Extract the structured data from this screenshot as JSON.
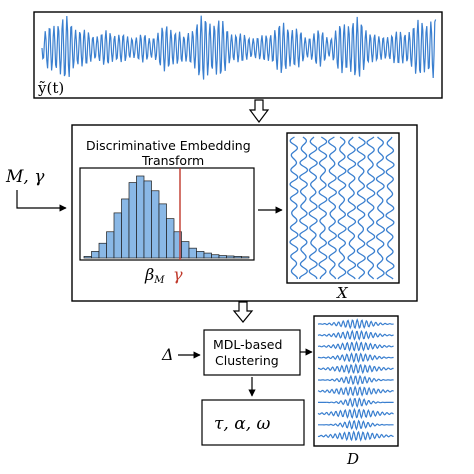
{
  "signal": {
    "label": "ỹ(t)"
  },
  "inputs": {
    "params_label": "M, γ",
    "delta_label": "Δ"
  },
  "embedding": {
    "title_line1": "Discriminative Embedding",
    "title_line2": "Transform",
    "beta_label": "β",
    "beta_sub": "M",
    "gamma_label": "γ",
    "output_label": "X"
  },
  "clustering": {
    "line1": "MDL-based",
    "line2": "Clustering",
    "output_label": "D",
    "result_label": "τ, α, ω"
  },
  "colors": {
    "signal": "#3a7fcf",
    "bar_fill": "#8ab8e6",
    "gamma_line": "#c0392b"
  },
  "histogram": {
    "bar_heights": [
      0.02,
      0.08,
      0.18,
      0.32,
      0.55,
      0.72,
      0.92,
      1.0,
      0.94,
      0.82,
      0.66,
      0.48,
      0.32,
      0.2,
      0.12,
      0.08,
      0.06,
      0.04,
      0.03,
      0.025,
      0.02,
      0.015
    ]
  }
}
